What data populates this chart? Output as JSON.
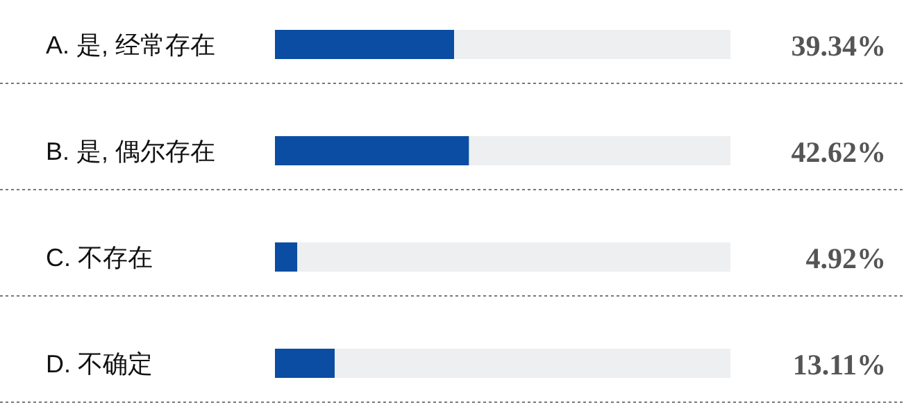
{
  "chart_data": {
    "type": "bar",
    "orientation": "horizontal",
    "stacked": true,
    "categories": [
      "A. 是, 经常存在",
      "B. 是, 偶尔存在",
      "C. 不存在",
      "D. 不确定"
    ],
    "series": [
      {
        "color": "#0a4da2",
        "values": [
          39.34,
          42.62,
          4.92,
          13.11
        ],
        "value_labels": [
          "39.34%",
          "42.62%",
          "4.92%",
          "13.11%"
        ]
      },
      {
        "color": "#eeeff0",
        "values": [
          60.66,
          57.38,
          95.08,
          86.89
        ]
      }
    ]
  }
}
